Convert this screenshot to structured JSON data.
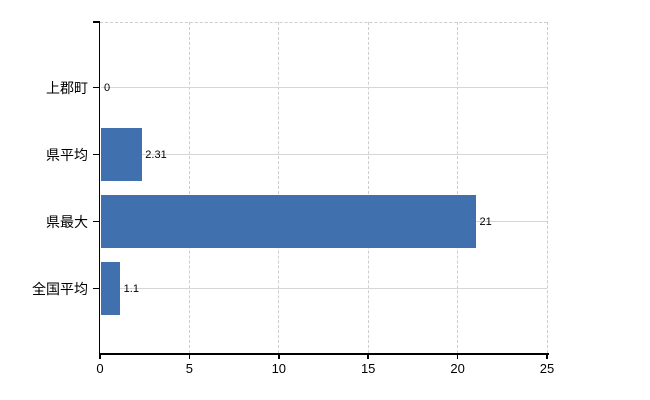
{
  "chart_data": {
    "type": "bar",
    "orientation": "horizontal",
    "title": "",
    "categories": [
      "上郡町",
      "県平均",
      "県最大",
      "全国平均"
    ],
    "values": [
      0,
      2.31,
      21,
      1.1
    ],
    "value_labels": [
      "0",
      "2.31",
      "21",
      "1.1"
    ],
    "xlabel": "",
    "ylabel": "",
    "xlim": [
      0,
      25
    ],
    "x_ticks": [
      0,
      5,
      10,
      15,
      20,
      25
    ],
    "grid": true,
    "legend": false,
    "plot_border": "dashed top and right, solid black left and bottom axes",
    "colors": {
      "bar": "#4070ae",
      "grid_solid": "#d6d6d6",
      "grid_dashed": "#cdcdcd",
      "axis": "#000000",
      "text": "#000000",
      "background": "#ffffff"
    }
  }
}
